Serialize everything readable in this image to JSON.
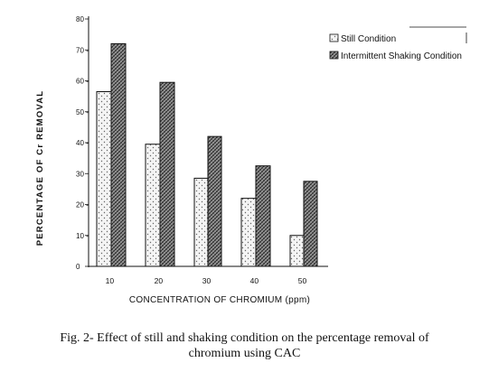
{
  "chart_data": {
    "type": "bar",
    "categories": [
      "10",
      "20",
      "30",
      "40",
      "50"
    ],
    "series": [
      {
        "name": "Still Condition",
        "values": [
          56.5,
          39.5,
          28.5,
          22,
          10
        ]
      },
      {
        "name": "Intermittent Shaking Condition",
        "values": [
          72,
          59.5,
          42,
          32.5,
          27.5
        ]
      }
    ],
    "xlabel": "CONCENTRATION OF CHROMIUM (ppm)",
    "ylabel": "PERCENTAGE OF Cr REMOVAL",
    "ylim": [
      0,
      80
    ],
    "yticks": [
      "0",
      "10 -",
      "20 -",
      "30",
      "40 -",
      "50 -",
      "60 -",
      "70 -",
      "80"
    ],
    "legend_position": "top-right",
    "grid": false,
    "colors": {
      "still": "#f2f2f2",
      "shaking": "#7a7a7a",
      "ink": "#111111"
    }
  },
  "caption": {
    "line1": "Fig. 2- Effect of still and shaking condition on the percentage removal of",
    "line2": "chromium using CAC"
  }
}
